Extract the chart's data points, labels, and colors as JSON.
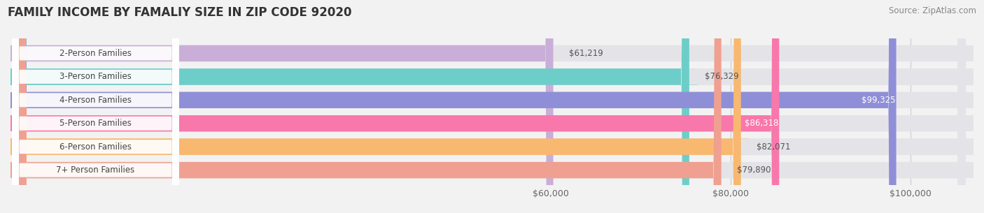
{
  "title": "FAMILY INCOME BY FAMALIY SIZE IN ZIP CODE 92020",
  "source": "Source: ZipAtlas.com",
  "categories": [
    "2-Person Families",
    "3-Person Families",
    "4-Person Families",
    "5-Person Families",
    "6-Person Families",
    "7+ Person Families"
  ],
  "values": [
    61219,
    76329,
    99325,
    86318,
    82071,
    79890
  ],
  "bar_colors": [
    "#c9aed8",
    "#6dcec9",
    "#8f8fd8",
    "#f878ab",
    "#f9b870",
    "#f0a090"
  ],
  "value_label_inside": [
    false,
    false,
    true,
    true,
    false,
    false
  ],
  "value_label_colors_inside": "#ffffff",
  "value_label_colors_outside": "#555555",
  "background_color": "#f2f2f2",
  "bar_bg_color": "#e4e4e8",
  "xmin": 0,
  "xmax": 107000,
  "xticks": [
    60000,
    80000,
    100000
  ],
  "xtick_labels": [
    "$60,000",
    "$80,000",
    "$100,000"
  ],
  "title_fontsize": 12,
  "source_fontsize": 8.5,
  "bar_label_fontsize": 8.5,
  "value_fontsize": 8.5
}
